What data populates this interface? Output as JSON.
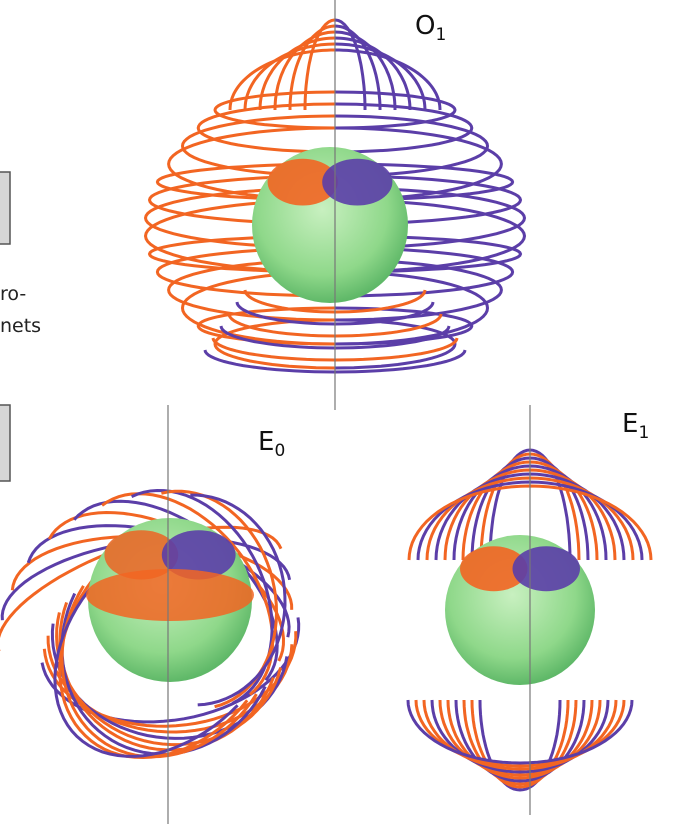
{
  "panels": [
    {
      "label": "O",
      "subscript": "1"
    },
    {
      "label": "E",
      "subscript": "0"
    },
    {
      "label": "E",
      "subscript": "1"
    }
  ],
  "side_text": [
    "ro-",
    "nets"
  ]
}
